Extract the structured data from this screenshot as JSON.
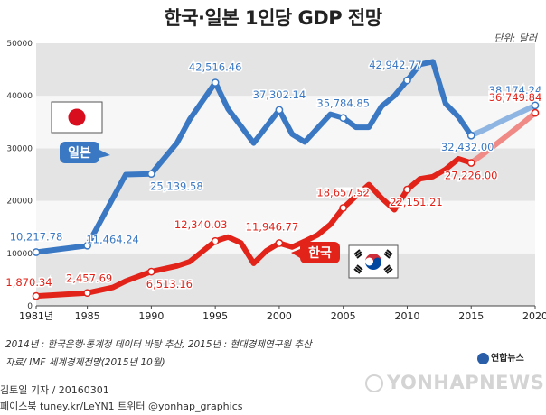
{
  "header": {
    "title": "한국·일본 1인당 GDP 전망",
    "unit": "단위: 달러"
  },
  "chart_data": {
    "type": "line",
    "title": "한국·일본 1인당 GDP 전망",
    "unit": "단위: 달러",
    "xlim": [
      1981,
      2020
    ],
    "ylim": [
      0,
      50000
    ],
    "x_ticks": [
      1981,
      1985,
      1990,
      1995,
      2000,
      2005,
      2010,
      2015,
      2020
    ],
    "x_tick_labels": [
      "1981년",
      "1985",
      "1990",
      "1995",
      "2000",
      "2005",
      "2010",
      "2015",
      "2020"
    ],
    "y_ticks": [
      0,
      10000,
      20000,
      30000,
      40000,
      50000
    ],
    "y_tick_labels": [
      "0",
      "10000",
      "20000",
      "30000",
      "40000",
      "50000"
    ],
    "grid": "horizontal bands",
    "forecast_from": 2015,
    "series": [
      {
        "name": "일본",
        "color": "#3a78c3",
        "forecast_color": "#8fb6e3",
        "x": [
          1981,
          1985,
          1987,
          1988,
          1990,
          1992,
          1993,
          1995,
          1996,
          1998,
          2000,
          2001,
          2002,
          2004,
          2005,
          2006,
          2007,
          2008,
          2009,
          2010,
          2011,
          2012,
          2013,
          2014,
          2015,
          2016,
          2017,
          2018,
          2019,
          2020
        ],
        "values": [
          10217.78,
          11464.24,
          20500,
          25000,
          25139.58,
          31000,
          35500,
          42516.46,
          37500,
          31000,
          37302.14,
          32700,
          31200,
          36500,
          35784.85,
          34000,
          34000,
          38000,
          40000,
          42942.77,
          46000,
          46500,
          38500,
          36000,
          32432.0,
          33500,
          34700,
          35900,
          37000,
          38174.24
        ]
      },
      {
        "name": "한국",
        "color": "#e2231a",
        "forecast_color": "#f08a86",
        "x": [
          1981,
          1985,
          1987,
          1988,
          1990,
          1992,
          1993,
          1995,
          1996,
          1997,
          1998,
          1999,
          2000,
          2001,
          2002,
          2003,
          2004,
          2005,
          2006,
          2007,
          2008,
          2009,
          2010,
          2011,
          2012,
          2013,
          2014,
          2015,
          2016,
          2017,
          2018,
          2019,
          2020
        ],
        "values": [
          1870.34,
          2457.69,
          3500,
          4700,
          6513.16,
          7600,
          8400,
          12340.03,
          13100,
          12000,
          8100,
          10500,
          11946.77,
          11200,
          12300,
          13500,
          15500,
          18657.52,
          20900,
          23100,
          20500,
          18300,
          22151.21,
          24200,
          24600,
          26000,
          28000,
          27226.0,
          29000,
          30900,
          32800,
          34700,
          36749.84
        ]
      }
    ],
    "annotations": [
      {
        "series": "일본",
        "x": 1981,
        "label": "10,217.78"
      },
      {
        "series": "일본",
        "x": 1985,
        "label": "11,464.24"
      },
      {
        "series": "일본",
        "x": 1990,
        "label": "25,139.58"
      },
      {
        "series": "일본",
        "x": 1995,
        "label": "42,516.46"
      },
      {
        "series": "일본",
        "x": 2000,
        "label": "37,302.14"
      },
      {
        "series": "일본",
        "x": 2005,
        "label": "35,784.85"
      },
      {
        "series": "일본",
        "x": 2010,
        "label": "42,942.77"
      },
      {
        "series": "일본",
        "x": 2015,
        "label": "32,432.00"
      },
      {
        "series": "일본",
        "x": 2020,
        "label": "38,174.24"
      },
      {
        "series": "한국",
        "x": 1981,
        "label": "1,870.34"
      },
      {
        "series": "한국",
        "x": 1985,
        "label": "2,457.69"
      },
      {
        "series": "한국",
        "x": 1990,
        "label": "6,513.16"
      },
      {
        "series": "한국",
        "x": 1995,
        "label": "12,340.03"
      },
      {
        "series": "한국",
        "x": 2000,
        "label": "11,946.77"
      },
      {
        "series": "한국",
        "x": 2005,
        "label": "18,657.52"
      },
      {
        "series": "한국",
        "x": 2010,
        "label": "22,151.21"
      },
      {
        "series": "한국",
        "x": 2015,
        "label": "27,226.00"
      },
      {
        "series": "한국",
        "x": 2020,
        "label": "36,749.84"
      }
    ],
    "legend_labels": [
      {
        "series": "일본",
        "label": "일본",
        "flag": "japan-flag"
      },
      {
        "series": "한국",
        "label": "한국",
        "flag": "korea-flag"
      }
    ]
  },
  "footer": {
    "note": "2014년 : 한국은행·통계청 데이터 바탕 추산, 2015년 : 현대경제연구원 추산",
    "source": "자료/ IMF 세계경제전망(2015년 10월)",
    "byline": "김토일 기자 / 20160301",
    "social": "페이스북 tuney.kr/LeYN1  트위터 @yonhap_graphics",
    "agency": "연합뉴스",
    "watermark": "YONHAPNEWS"
  }
}
